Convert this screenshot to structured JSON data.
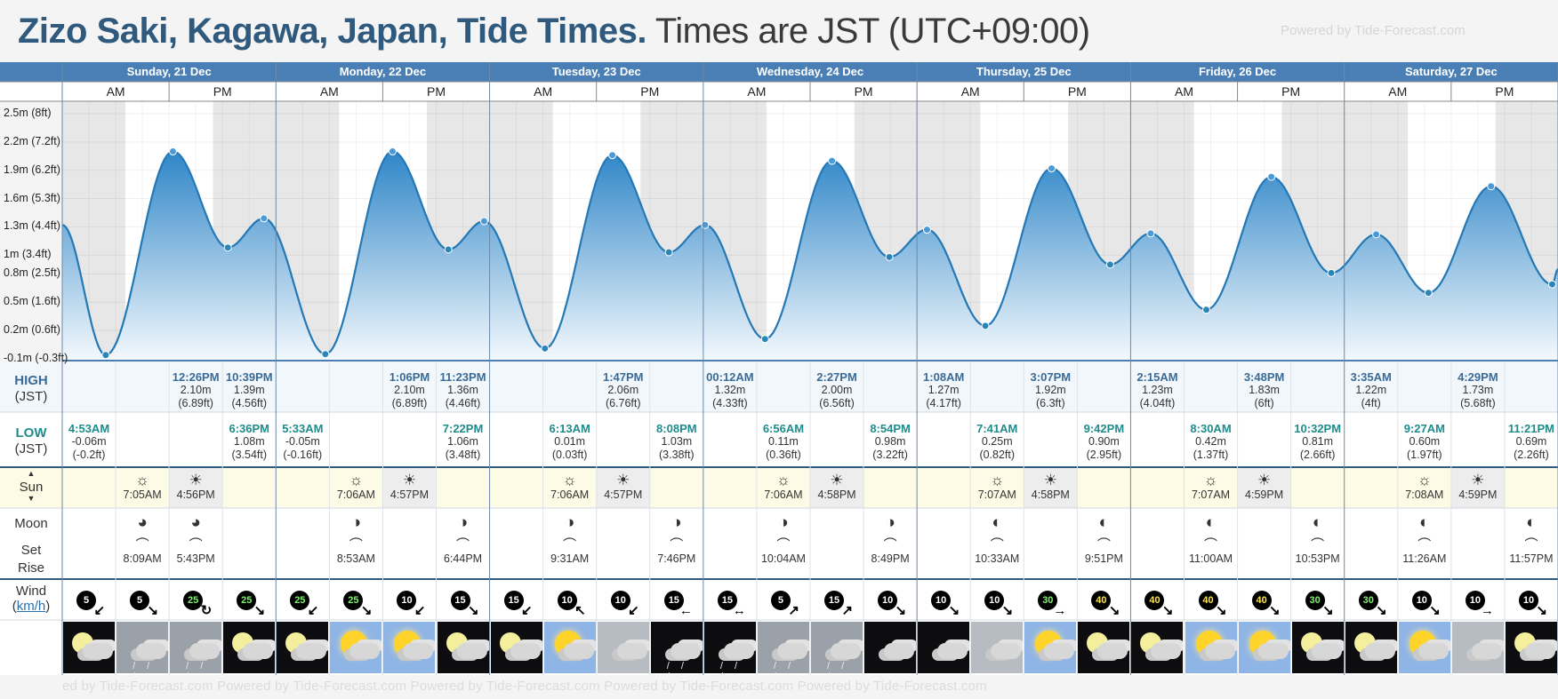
{
  "title": {
    "bold": "Zizo Saki, Kagawa, Japan, Tide Times.",
    "rest": "Times are JST (UTC+09:00)"
  },
  "watermark": {
    "top": "Powered by Tide-Forecast.com",
    "bottom": "ed by Tide-Forecast.com          Powered by Tide-Forecast.com          Powered by Tide-Forecast.com          Powered by Tide-Forecast.com          Powered by Tide-Forecast.com"
  },
  "row_labels": {
    "high": "HIGH",
    "high_tz": "(JST)",
    "low": "LOW",
    "low_tz": "(JST)",
    "sun": "Sun",
    "sun_arrows": "▲\n▼",
    "moon": "Moon",
    "moon_set": "Set",
    "moon_rise": "Rise",
    "wind": "Wind",
    "wind_unit": "km/h"
  },
  "days": [
    {
      "label": "Sunday, 21 Dec",
      "am": "AM",
      "pm": "PM"
    },
    {
      "label": "Monday, 22 Dec",
      "am": "AM",
      "pm": "PM"
    },
    {
      "label": "Tuesday, 23 Dec",
      "am": "AM",
      "pm": "PM"
    },
    {
      "label": "Wednesday, 24 Dec",
      "am": "AM",
      "pm": "PM"
    },
    {
      "label": "Thursday, 25 Dec",
      "am": "AM",
      "pm": "PM"
    },
    {
      "label": "Friday, 26 Dec",
      "am": "AM",
      "pm": "PM"
    },
    {
      "label": "Saturday, 27 Dec",
      "am": "AM",
      "pm": "PM"
    }
  ],
  "chart_data": {
    "type": "area",
    "y_unit": "m",
    "ylim": [
      -0.1,
      2.5
    ],
    "y_ticks": [
      {
        "v": -0.1,
        "label": "-0.1m (-0.3ft)"
      },
      {
        "v": 0.2,
        "label": "0.2m (0.6ft)"
      },
      {
        "v": 0.5,
        "label": "0.5m (1.6ft)"
      },
      {
        "v": 0.8,
        "label": "0.8m (2.5ft)"
      },
      {
        "v": 1.0,
        "label": "1m (3.4ft)"
      },
      {
        "v": 1.3,
        "label": "1.3m (4.4ft)"
      },
      {
        "v": 1.6,
        "label": "1.6m (5.3ft)"
      },
      {
        "v": 1.9,
        "label": "1.9m (6.2ft)"
      },
      {
        "v": 2.2,
        "label": "2.2m (7.2ft)"
      },
      {
        "v": 2.5,
        "label": "2.5m (8ft)"
      }
    ],
    "x_start_hour": 0,
    "x_end_hour": 168,
    "start_level": 1.32,
    "end_level": 0.85,
    "events": [
      {
        "type": "low",
        "day": 0,
        "time": "4:53AM",
        "h": 4.883,
        "m": "-0.06m",
        "ft": "(-0.2ft)",
        "v": -0.06
      },
      {
        "type": "high",
        "day": 0,
        "time": "12:26PM",
        "h": 12.433,
        "m": "2.10m",
        "ft": "(6.89ft)",
        "v": 2.1
      },
      {
        "type": "low",
        "day": 0,
        "time": "6:36PM",
        "h": 18.6,
        "m": "1.08m",
        "ft": "(3.54ft)",
        "v": 1.08
      },
      {
        "type": "high",
        "day": 0,
        "time": "10:39PM",
        "h": 22.65,
        "m": "1.39m",
        "ft": "(4.56ft)",
        "v": 1.39
      },
      {
        "type": "low",
        "day": 1,
        "time": "5:33AM",
        "h": 29.55,
        "m": "-0.05m",
        "ft": "(-0.16ft)",
        "v": -0.05
      },
      {
        "type": "high",
        "day": 1,
        "time": "1:06PM",
        "h": 37.1,
        "m": "2.10m",
        "ft": "(6.89ft)",
        "v": 2.1
      },
      {
        "type": "low",
        "day": 1,
        "time": "7:22PM",
        "h": 43.367,
        "m": "1.06m",
        "ft": "(3.48ft)",
        "v": 1.06
      },
      {
        "type": "high",
        "day": 1,
        "time": "11:23PM",
        "h": 47.383,
        "m": "1.36m",
        "ft": "(4.46ft)",
        "v": 1.36
      },
      {
        "type": "low",
        "day": 2,
        "time": "6:13AM",
        "h": 54.217,
        "m": "0.01m",
        "ft": "(0.03ft)",
        "v": 0.01
      },
      {
        "type": "high",
        "day": 2,
        "time": "1:47PM",
        "h": 61.783,
        "m": "2.06m",
        "ft": "(6.76ft)",
        "v": 2.06
      },
      {
        "type": "low",
        "day": 2,
        "time": "8:08PM",
        "h": 68.133,
        "m": "1.03m",
        "ft": "(3.38ft)",
        "v": 1.03
      },
      {
        "type": "high",
        "day": 3,
        "time": "00:12AM",
        "h": 72.2,
        "m": "1.32m",
        "ft": "(4.33ft)",
        "v": 1.32
      },
      {
        "type": "low",
        "day": 3,
        "time": "6:56AM",
        "h": 78.933,
        "m": "0.11m",
        "ft": "(0.36ft)",
        "v": 0.11
      },
      {
        "type": "high",
        "day": 3,
        "time": "2:27PM",
        "h": 86.45,
        "m": "2.00m",
        "ft": "(6.56ft)",
        "v": 2.0
      },
      {
        "type": "low",
        "day": 3,
        "time": "8:54PM",
        "h": 92.9,
        "m": "0.98m",
        "ft": "(3.22ft)",
        "v": 0.98
      },
      {
        "type": "high",
        "day": 4,
        "time": "1:08AM",
        "h": 97.133,
        "m": "1.27m",
        "ft": "(4.17ft)",
        "v": 1.27
      },
      {
        "type": "low",
        "day": 4,
        "time": "7:41AM",
        "h": 103.683,
        "m": "0.25m",
        "ft": "(0.82ft)",
        "v": 0.25
      },
      {
        "type": "high",
        "day": 4,
        "time": "3:07PM",
        "h": 111.117,
        "m": "1.92m",
        "ft": "(6.3ft)",
        "v": 1.92
      },
      {
        "type": "low",
        "day": 4,
        "time": "9:42PM",
        "h": 117.7,
        "m": "0.90m",
        "ft": "(2.95ft)",
        "v": 0.9
      },
      {
        "type": "high",
        "day": 5,
        "time": "2:15AM",
        "h": 122.25,
        "m": "1.23m",
        "ft": "(4.04ft)",
        "v": 1.23
      },
      {
        "type": "low",
        "day": 5,
        "time": "8:30AM",
        "h": 128.5,
        "m": "0.42m",
        "ft": "(1.37ft)",
        "v": 0.42
      },
      {
        "type": "high",
        "day": 5,
        "time": "3:48PM",
        "h": 135.8,
        "m": "1.83m",
        "ft": "(6ft)",
        "v": 1.83
      },
      {
        "type": "low",
        "day": 5,
        "time": "10:32PM",
        "h": 142.533,
        "m": "0.81m",
        "ft": "(2.66ft)",
        "v": 0.81
      },
      {
        "type": "high",
        "day": 6,
        "time": "3:35AM",
        "h": 147.583,
        "m": "1.22m",
        "ft": "(4ft)",
        "v": 1.22
      },
      {
        "type": "low",
        "day": 6,
        "time": "9:27AM",
        "h": 153.45,
        "m": "0.60m",
        "ft": "(1.97ft)",
        "v": 0.6
      },
      {
        "type": "high",
        "day": 6,
        "time": "4:29PM",
        "h": 160.483,
        "m": "1.73m",
        "ft": "(5.68ft)",
        "v": 1.73
      },
      {
        "type": "low",
        "day": 6,
        "time": "11:21PM",
        "h": 167.35,
        "m": "0.69m",
        "ft": "(2.26ft)",
        "v": 0.69
      }
    ]
  },
  "sun": [
    {
      "rise": "7:05AM",
      "set": "4:56PM",
      "rise_h": 7.083,
      "set_h": 16.933
    },
    {
      "rise": "7:06AM",
      "set": "4:57PM",
      "rise_h": 7.1,
      "set_h": 16.95
    },
    {
      "rise": "7:06AM",
      "set": "4:57PM",
      "rise_h": 7.1,
      "set_h": 16.95
    },
    {
      "rise": "7:06AM",
      "set": "4:58PM",
      "rise_h": 7.1,
      "set_h": 16.967
    },
    {
      "rise": "7:07AM",
      "set": "4:58PM",
      "rise_h": 7.117,
      "set_h": 16.967
    },
    {
      "rise": "7:07AM",
      "set": "4:59PM",
      "rise_h": 7.117,
      "set_h": 16.983
    },
    {
      "rise": "7:08AM",
      "set": "4:59PM",
      "rise_h": 7.133,
      "set_h": 16.983
    }
  ],
  "moon": [
    {
      "time": "8:09AM",
      "kind": "rise",
      "slot": 1,
      "icon": "◕"
    },
    {
      "time": "5:43PM",
      "kind": "set",
      "slot": 2,
      "icon": "◕"
    },
    {
      "time": "8:53AM",
      "kind": "rise",
      "slot": 5,
      "icon": "◑"
    },
    {
      "time": "6:44PM",
      "kind": "set",
      "slot": 7,
      "icon": "◑"
    },
    {
      "time": "9:31AM",
      "kind": "rise",
      "slot": 9,
      "icon": "◑"
    },
    {
      "time": "7:46PM",
      "kind": "set",
      "slot": 11,
      "icon": "◑"
    },
    {
      "time": "10:04AM",
      "kind": "rise",
      "slot": 13,
      "icon": "◑"
    },
    {
      "time": "8:49PM",
      "kind": "set",
      "slot": 15,
      "icon": "◑"
    },
    {
      "time": "10:33AM",
      "kind": "rise",
      "slot": 17,
      "icon": "◐"
    },
    {
      "time": "9:51PM",
      "kind": "set",
      "slot": 19,
      "icon": "◐"
    },
    {
      "time": "11:00AM",
      "kind": "rise",
      "slot": 21,
      "icon": "◐"
    },
    {
      "time": "10:53PM",
      "kind": "set",
      "slot": 23,
      "icon": "◐"
    },
    {
      "time": "11:26AM",
      "kind": "rise",
      "slot": 25,
      "icon": "◐"
    },
    {
      "time": "11:57PM",
      "kind": "set",
      "slot": 27,
      "icon": "◐"
    }
  ],
  "wind": [
    {
      "v": "5",
      "c": "w",
      "dir": "↙"
    },
    {
      "v": "5",
      "c": "w",
      "dir": "↘"
    },
    {
      "v": "25",
      "c": "g",
      "dir": "↻"
    },
    {
      "v": "25",
      "c": "g",
      "dir": "↘"
    },
    {
      "v": "25",
      "c": "g",
      "dir": "↙"
    },
    {
      "v": "25",
      "c": "g",
      "dir": "↘"
    },
    {
      "v": "10",
      "c": "w",
      "dir": "↙"
    },
    {
      "v": "15",
      "c": "w",
      "dir": "↘"
    },
    {
      "v": "15",
      "c": "w",
      "dir": "↙"
    },
    {
      "v": "10",
      "c": "w",
      "dir": "↖"
    },
    {
      "v": "10",
      "c": "w",
      "dir": "↙"
    },
    {
      "v": "15",
      "c": "w",
      "dir": "←"
    },
    {
      "v": "15",
      "c": "w",
      "dir": "↔"
    },
    {
      "v": "5",
      "c": "w",
      "dir": "↗"
    },
    {
      "v": "15",
      "c": "w",
      "dir": "↗"
    },
    {
      "v": "10",
      "c": "w",
      "dir": "↘"
    },
    {
      "v": "10",
      "c": "w",
      "dir": "↘"
    },
    {
      "v": "10",
      "c": "w",
      "dir": "↘"
    },
    {
      "v": "30",
      "c": "g",
      "dir": "→"
    },
    {
      "v": "40",
      "c": "y",
      "dir": "↘"
    },
    {
      "v": "40",
      "c": "y",
      "dir": "↘"
    },
    {
      "v": "40",
      "c": "y",
      "dir": "↘"
    },
    {
      "v": "40",
      "c": "y",
      "dir": "↘"
    },
    {
      "v": "30",
      "c": "g",
      "dir": "↘"
    },
    {
      "v": "30",
      "c": "g",
      "dir": "↘"
    },
    {
      "v": "10",
      "c": "w",
      "dir": "↘"
    },
    {
      "v": "10",
      "c": "w",
      "dir": "→"
    },
    {
      "v": "10",
      "c": "w",
      "dir": "↘"
    }
  ],
  "weather": [
    "moon-cloud",
    "rain-cloud",
    "rain-cloud",
    "moon-cloud",
    "moon-cloud",
    "sun-cloud",
    "sun-cloud",
    "moon-cloud",
    "moon-cloud",
    "sun-cloud",
    "cloud",
    "rain-night",
    "rain-night",
    "rain-cloud",
    "rain-cloud",
    "cloud-night",
    "cloud-night",
    "cloud",
    "sun-cloud",
    "moon-cloud",
    "moon-cloud",
    "sun-cloud",
    "sun-cloud",
    "moon-cloud",
    "moon-cloud",
    "sun-cloud",
    "cloud",
    "moon-cloud"
  ],
  "colors": {
    "header": "#4a7fb5",
    "tide_fill_top": "#2f86c8",
    "tide_fill_bottom": "#f4f9fd",
    "tide_line": "#2378b5",
    "night": "#e7e7e7",
    "high": "#3a6b97",
    "low": "#1f8c8c",
    "sun_row_day": "#fdfbe6",
    "sun_row_night": "#ededed"
  }
}
